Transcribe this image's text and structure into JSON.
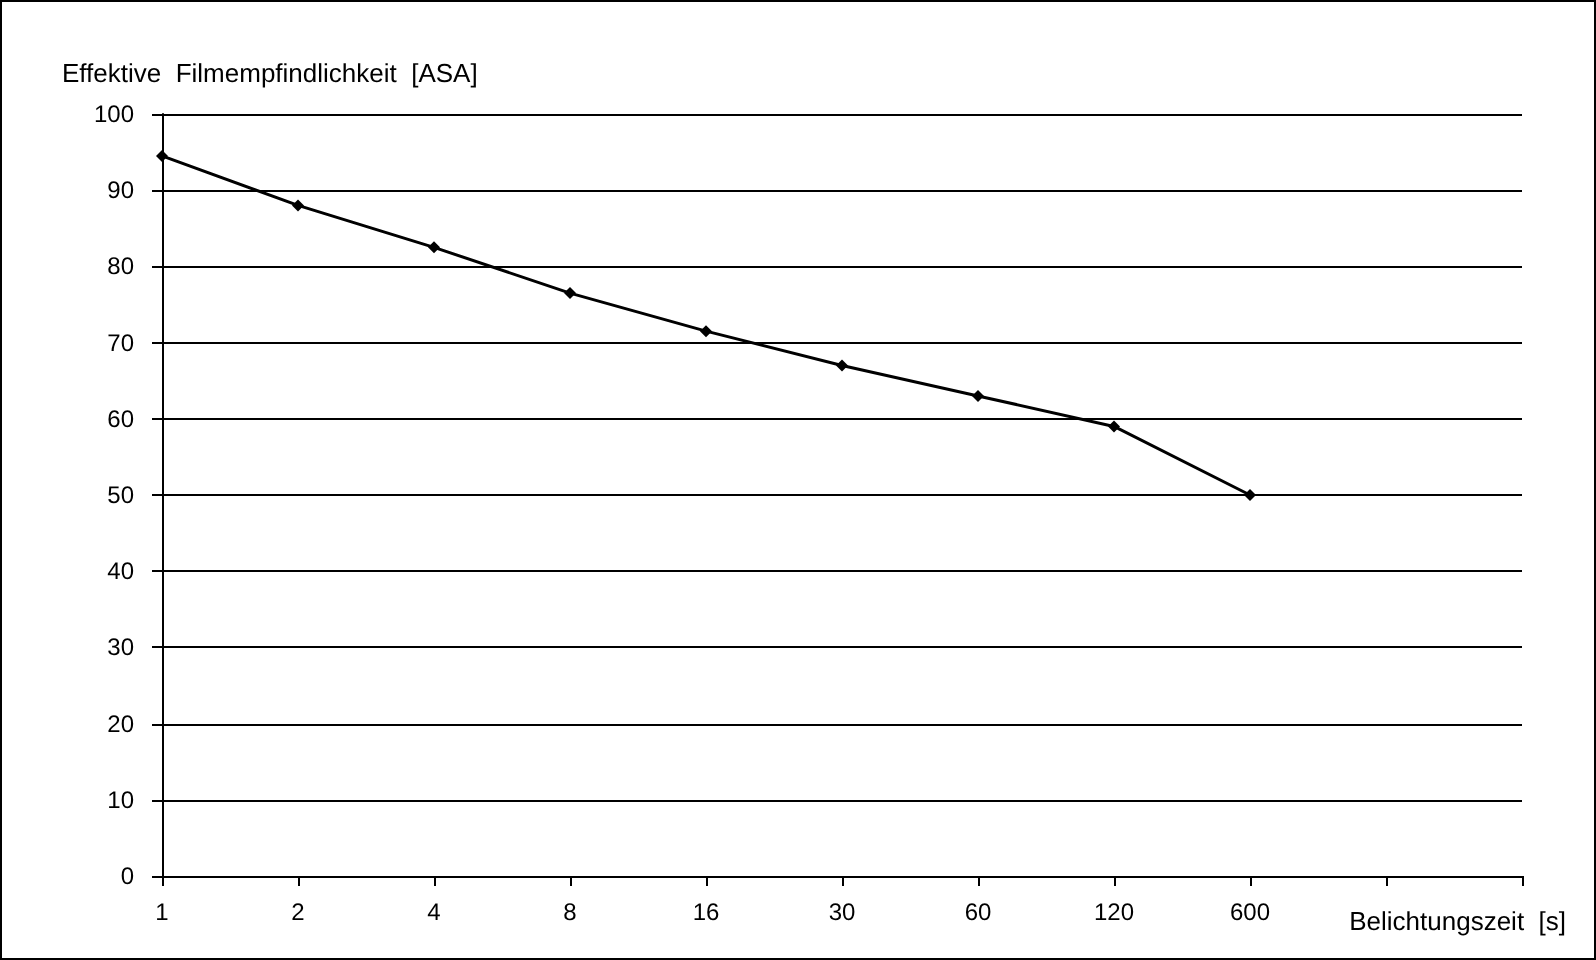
{
  "chart_data": {
    "type": "line",
    "xlabel": "Belichtungszeit  [s]",
    "ylabel": "Effektive  Filmempfindlichkeit  [ASA]",
    "categories": [
      "1",
      "2",
      "4",
      "8",
      "16",
      "30",
      "60",
      "120",
      "600",
      null,
      null
    ],
    "series": [
      {
        "color": "#000000",
        "values": [
          94.5,
          88,
          82.5,
          76.5,
          71.5,
          67,
          63,
          59,
          50,
          null,
          null
        ]
      }
    ],
    "ylim": [
      0,
      100
    ],
    "yticks": [
      0,
      10,
      20,
      30,
      40,
      50,
      60,
      70,
      80,
      90,
      100
    ],
    "grid": "y",
    "marker": "diamond",
    "line_style": "solid"
  }
}
